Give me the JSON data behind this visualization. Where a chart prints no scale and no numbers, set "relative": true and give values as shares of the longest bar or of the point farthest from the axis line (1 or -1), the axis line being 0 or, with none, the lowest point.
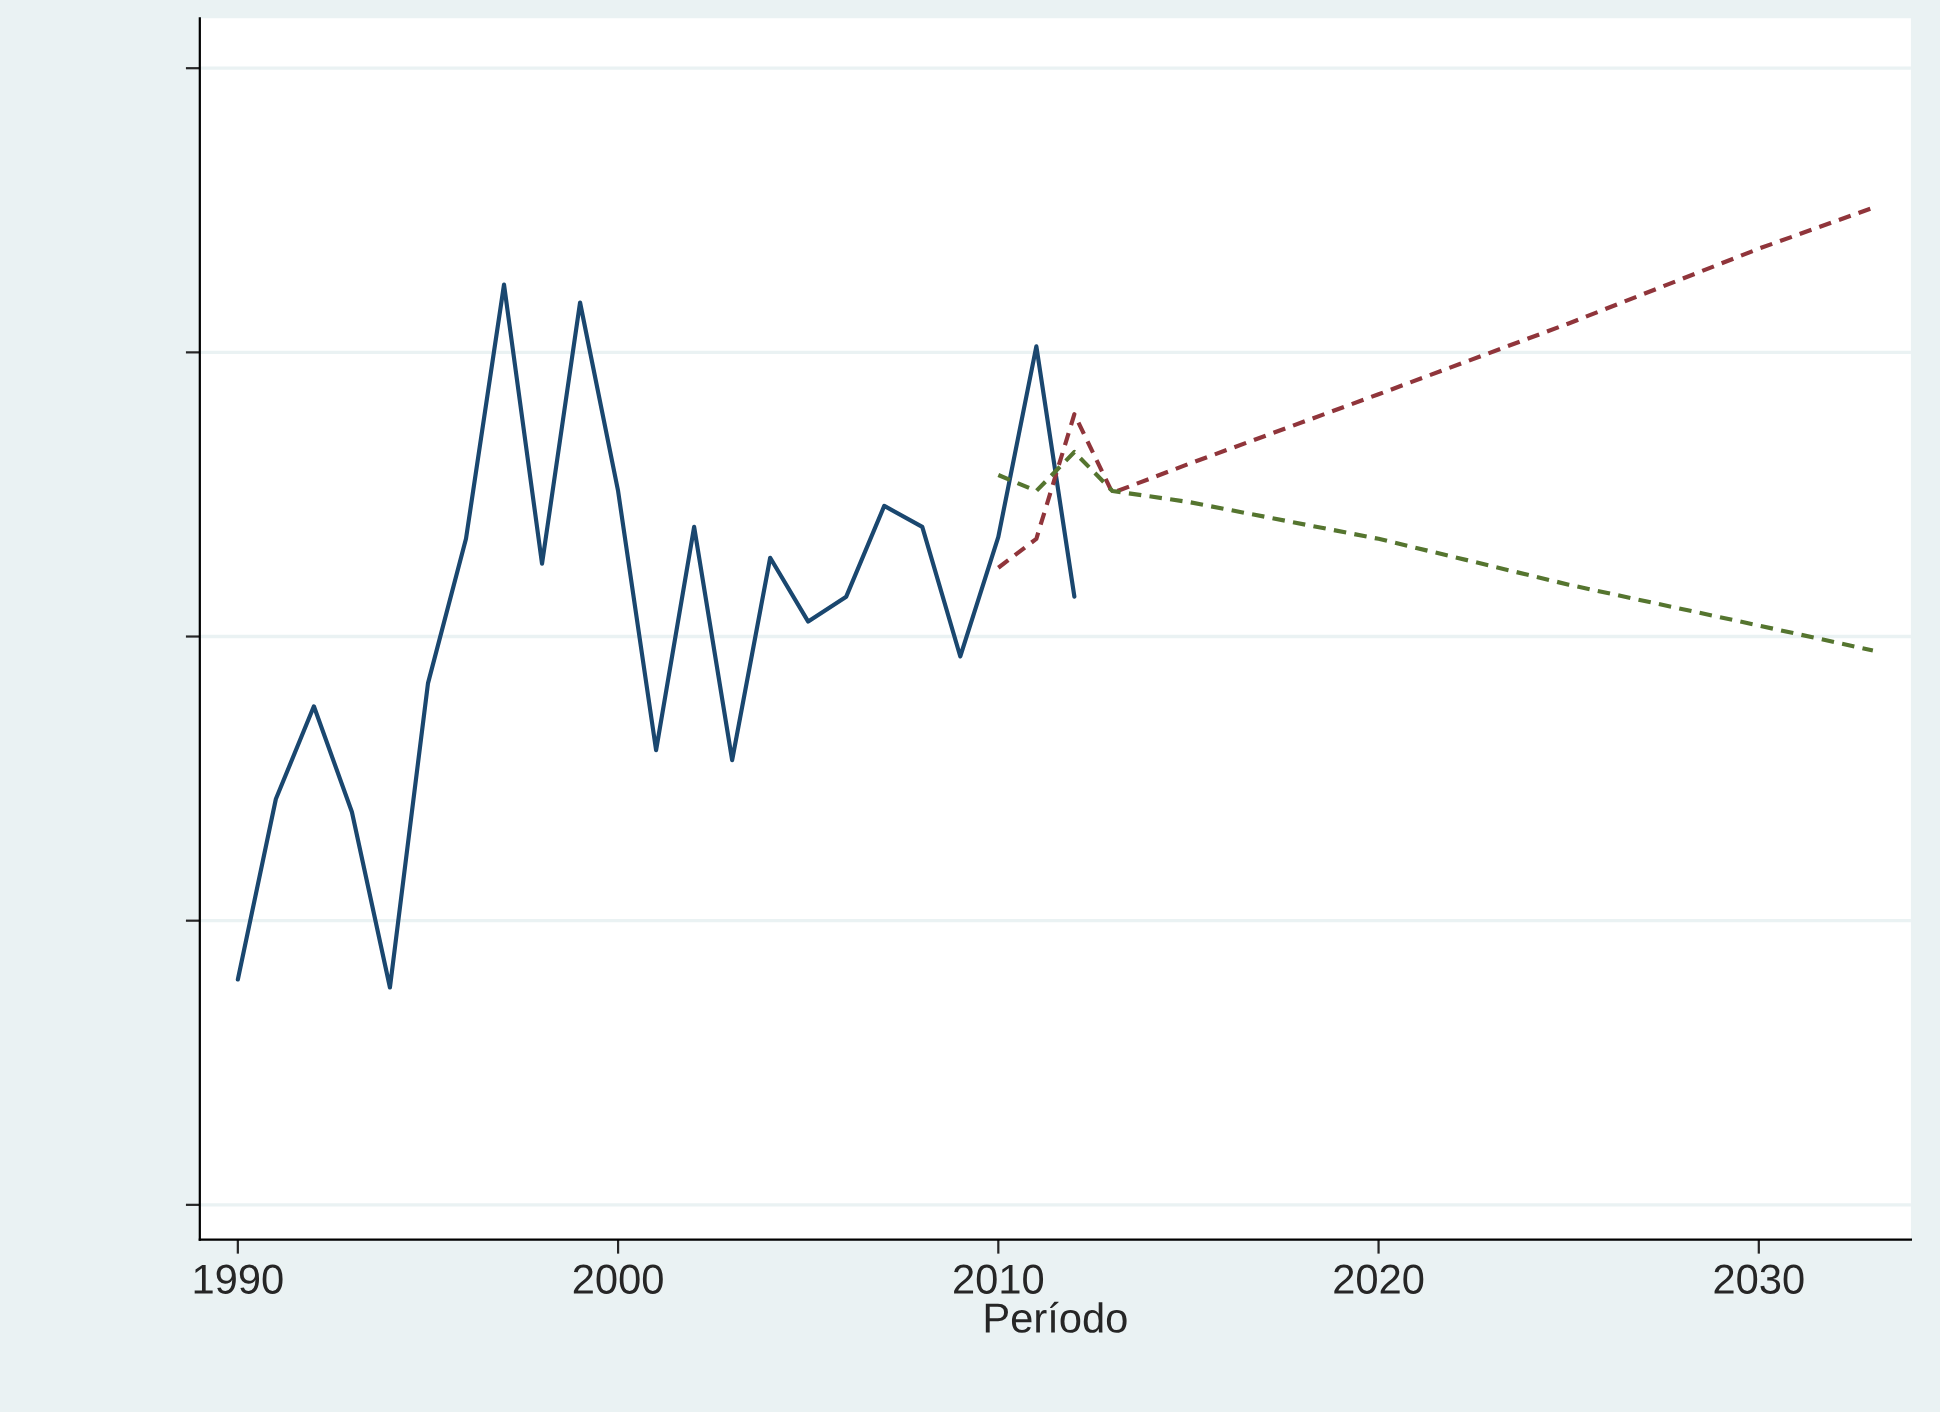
{
  "chart_data": {
    "type": "line",
    "xlabel": "Período",
    "relative": true,
    "xlim": [
      1989,
      2034
    ],
    "xticks": [
      1990,
      2000,
      2010,
      2020,
      2030
    ],
    "grid": "y",
    "tick_labels": "x",
    "series": [
      {
        "color": "#1a476f",
        "line_style": "solid",
        "x": [
          1990,
          1991,
          1992,
          1993,
          1994,
          1995,
          1996,
          1997,
          1998,
          1999,
          2000,
          2001,
          2002,
          2003,
          2004,
          2005,
          2006,
          2007,
          2008,
          2009,
          2010,
          2011,
          2012
        ],
        "values": [
          0.226,
          0.407,
          0.5,
          0.394,
          0.218,
          0.523,
          0.668,
          0.923,
          0.643,
          0.905,
          0.716,
          0.456,
          0.68,
          0.446,
          0.649,
          0.585,
          0.61,
          0.701,
          0.68,
          0.55,
          0.67,
          0.861,
          0.61
        ]
      },
      {
        "color": "#90353b",
        "line_style": "dashed",
        "x": [
          2010,
          2011,
          2012,
          2013,
          2015,
          2020,
          2025,
          2030,
          2033
        ],
        "values": [
          0.639,
          0.668,
          0.793,
          0.714,
          0.743,
          0.813,
          0.884,
          0.959,
          1.0
        ]
      },
      {
        "color": "#55752f",
        "line_style": "dashed",
        "x": [
          2010,
          2011,
          2012,
          2013,
          2015,
          2020,
          2025,
          2030,
          2033
        ],
        "values": [
          0.732,
          0.716,
          0.755,
          0.716,
          0.705,
          0.668,
          0.622,
          0.581,
          0.556
        ]
      }
    ]
  }
}
